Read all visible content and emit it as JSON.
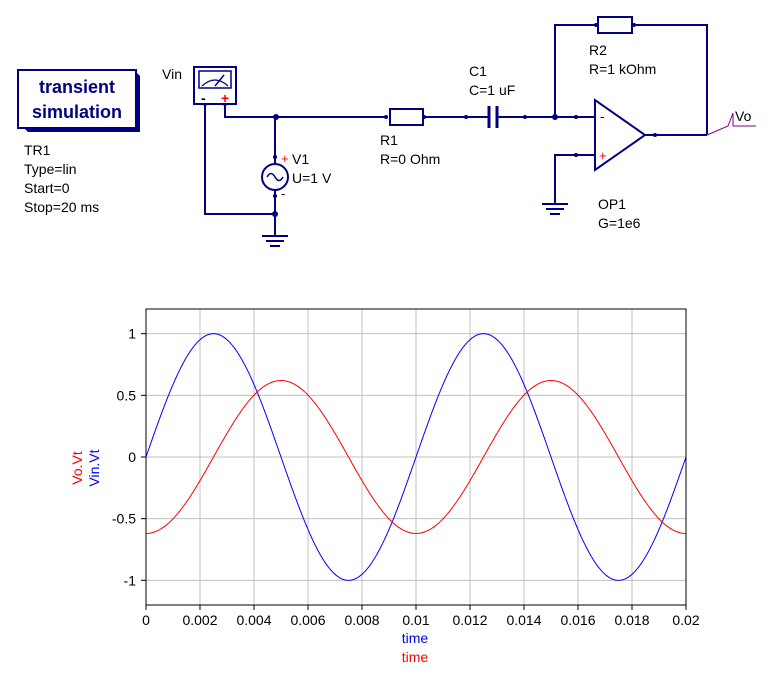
{
  "colors": {
    "wire": "#000080",
    "component": "#000080",
    "pin": "#000080",
    "plus_sign": "#ff0000",
    "vo_label_line": "#800080",
    "grid": "#c0c0c0",
    "series_red": "#ff0000",
    "series_blue": "#0000ff"
  },
  "simulation_box": {
    "title_line1": "transient",
    "title_line2": "simulation",
    "name": "TR1",
    "type": "Type=lin",
    "start": "Start=0",
    "stop": "Stop=20 ms"
  },
  "schematic": {
    "probe": {
      "name": "Vin",
      "minus": "-",
      "plus": "+"
    },
    "source": {
      "name": "V1",
      "value": "U=1 V",
      "plus": "+",
      "minus": "-"
    },
    "r1": {
      "name": "R1",
      "value": "R=0 Ohm"
    },
    "c1": {
      "name": "C1",
      "value": "C=1 uF"
    },
    "r2": {
      "name": "R2",
      "value": "R=1 kOhm"
    },
    "opamp": {
      "name": "OP1",
      "value": "G=1e6",
      "minus": "-",
      "plus": "+"
    },
    "output_label": "Vo"
  },
  "chart_data": {
    "type": "line",
    "x_unit_label": "time",
    "xlim": [
      0,
      0.02
    ],
    "ylim": [
      -1.2,
      1.2
    ],
    "xticks": [
      "0",
      "0.002",
      "0.004",
      "0.006",
      "0.008",
      "0.01",
      "0.012",
      "0.014",
      "0.016",
      "0.018",
      "0.02"
    ],
    "yticks": [
      "1",
      "0.5",
      "0",
      "-0.5",
      "-1"
    ],
    "ylabel_red": "Vo.Vt",
    "ylabel_blue": "Vin.Vt",
    "xlabel_blue": "time",
    "xlabel_red": "time",
    "grid": true,
    "series": [
      {
        "name": "Vin.Vt",
        "color": "#0000ff",
        "description_form": "sine",
        "amplitude": 1.0,
        "frequency_hz": 100,
        "phase_deg": 0,
        "sample_points": [
          [
            0,
            0
          ],
          [
            0.0025,
            1.0
          ],
          [
            0.005,
            0
          ],
          [
            0.0075,
            -1.0
          ],
          [
            0.01,
            0
          ],
          [
            0.0125,
            1.0
          ],
          [
            0.015,
            0
          ],
          [
            0.0175,
            -1.0
          ],
          [
            0.02,
            0
          ]
        ]
      },
      {
        "name": "Vo.Vt",
        "color": "#ff0000",
        "description_form": "sine",
        "amplitude": 0.62,
        "frequency_hz": 100,
        "phase_deg": -90,
        "sample_points": [
          [
            0,
            -0.62
          ],
          [
            0.0025,
            0
          ],
          [
            0.005,
            0.62
          ],
          [
            0.0075,
            0
          ],
          [
            0.01,
            -0.62
          ],
          [
            0.0125,
            0
          ],
          [
            0.015,
            0.62
          ],
          [
            0.0175,
            0
          ],
          [
            0.02,
            -0.62
          ]
        ]
      }
    ]
  }
}
